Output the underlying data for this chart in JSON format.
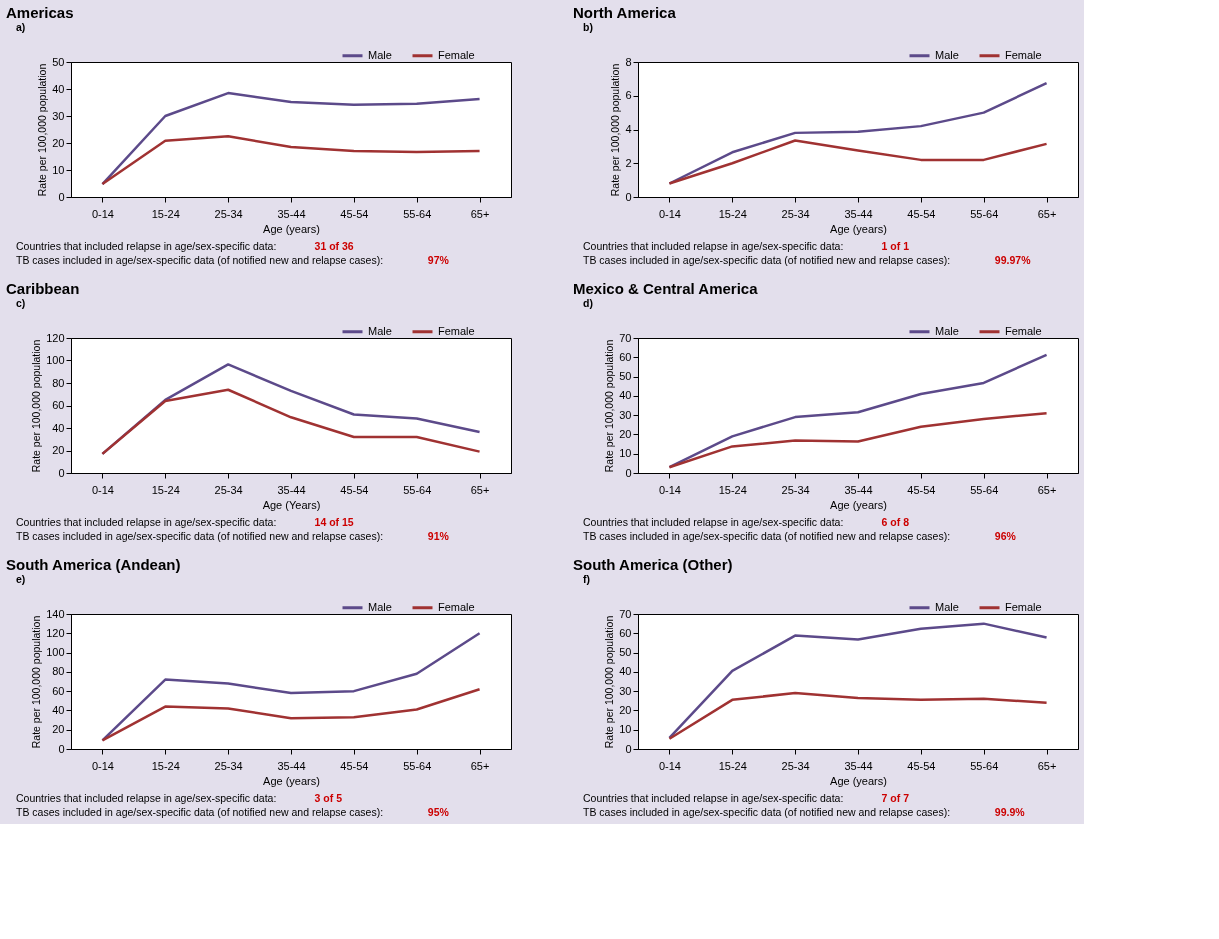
{
  "chart_data": [
    {
      "type": "line",
      "title": "Americas",
      "xlabel": "Age (years)",
      "ylabel": "Rate per 100,000 population",
      "categories": [
        "0-14",
        "15-24",
        "25-34",
        "35-44",
        "45-54",
        "55-64",
        "65+"
      ],
      "ylim": [
        0,
        50
      ],
      "yticks": [
        0,
        10,
        20,
        30,
        40,
        50
      ],
      "legend": "top right",
      "series": [
        {
          "name": "Male",
          "color": "#5c4a8a",
          "values": [
            4.8,
            30,
            38.5,
            35.2,
            34.2,
            34.5,
            36.3
          ]
        },
        {
          "name": "Female",
          "color": "#a03232",
          "values": [
            4.8,
            20.8,
            22.5,
            18.5,
            17,
            16.7,
            17
          ]
        }
      ],
      "annotations": [
        "a)",
        "Countries that included relapse in age/sex-specific data:",
        "31 of 36",
        "TB cases included in age/sex-specific data (of notified new and relapse cases):",
        "97%"
      ]
    },
    {
      "type": "line",
      "title": "North America",
      "xlabel": "Age (years)",
      "ylabel": "Rate per 100,000 population",
      "categories": [
        "0-14",
        "15-24",
        "25-34",
        "35-44",
        "45-54",
        "55-64",
        "65+"
      ],
      "ylim": [
        0,
        8
      ],
      "yticks": [
        0,
        2,
        4,
        6,
        8
      ],
      "legend": "top right",
      "series": [
        {
          "name": "Male",
          "color": "#5c4a8a",
          "values": [
            0.8,
            2.65,
            3.8,
            3.87,
            4.2,
            5.0,
            6.75
          ]
        },
        {
          "name": "Female",
          "color": "#a03232",
          "values": [
            0.8,
            2.0,
            3.35,
            2.75,
            2.2,
            2.2,
            3.15
          ]
        }
      ],
      "annotations": [
        "b)",
        "Countries that included relapse in age/sex-specific data:",
        "1 of 1",
        "TB cases included in age/sex-specific data (of notified new and relapse cases):",
        "99.97%"
      ]
    },
    {
      "type": "line",
      "title": "Caribbean",
      "xlabel": "Age (Years)",
      "ylabel": "Rate per 100,000 population",
      "categories": [
        "0-14",
        "15-24",
        "25-34",
        "35-44",
        "45-54",
        "55-64",
        "65+"
      ],
      "ylim": [
        0,
        120
      ],
      "yticks": [
        0,
        20,
        40,
        60,
        80,
        100,
        120
      ],
      "legend": "top right",
      "series": [
        {
          "name": "Male",
          "color": "#5c4a8a",
          "values": [
            17,
            65,
            96.5,
            73,
            52,
            48.5,
            36.5
          ]
        },
        {
          "name": "Female",
          "color": "#a03232",
          "values": [
            17,
            64,
            74,
            49.5,
            32,
            32,
            19
          ]
        }
      ],
      "annotations": [
        "c)",
        "Countries that included relapse in age/sex-specific data:",
        "14 of 15",
        "TB cases included in age/sex-specific data (of notified new and relapse cases):",
        "91%"
      ]
    },
    {
      "type": "line",
      "title": "Mexico & Central America",
      "xlabel": "Age (years)",
      "ylabel": "Rate per 100,000 population",
      "categories": [
        "0-14",
        "15-24",
        "25-34",
        "35-44",
        "45-54",
        "55-64",
        "65+"
      ],
      "ylim": [
        0,
        70
      ],
      "yticks": [
        0,
        10,
        20,
        30,
        40,
        50,
        60,
        70
      ],
      "legend": "top right",
      "series": [
        {
          "name": "Male",
          "color": "#5c4a8a",
          "values": [
            3,
            19,
            29,
            31.5,
            41,
            46.7,
            61.3
          ]
        },
        {
          "name": "Female",
          "color": "#a03232",
          "values": [
            3,
            13.8,
            16.8,
            16.3,
            24,
            28,
            31
          ]
        }
      ],
      "annotations": [
        "d)",
        "Countries that included relapse in age/sex-specific data:",
        "6 of 8",
        "TB cases included in age/sex-specific data (of notified new and relapse cases):",
        "96%"
      ]
    },
    {
      "type": "line",
      "title": "South America (Andean)",
      "xlabel": "Age (years)",
      "ylabel": "Rate per 100,000 population",
      "categories": [
        "0-14",
        "15-24",
        "25-34",
        "35-44",
        "45-54",
        "55-64",
        "65+"
      ],
      "ylim": [
        0,
        140
      ],
      "yticks": [
        0,
        20,
        40,
        60,
        80,
        100,
        120,
        140
      ],
      "legend": "top right",
      "series": [
        {
          "name": "Male",
          "color": "#5c4a8a",
          "values": [
            9,
            72,
            68,
            58,
            60,
            78,
            120
          ]
        },
        {
          "name": "Female",
          "color": "#a03232",
          "values": [
            9,
            44,
            42,
            32,
            33,
            41,
            62
          ]
        }
      ],
      "annotations": [
        "e)",
        "Countries that included relapse in age/sex-specific data:",
        "3 of 5",
        "TB cases included in age/sex-specific data (of notified new and relapse cases):",
        "95%"
      ]
    },
    {
      "type": "line",
      "title": "South America (Other)",
      "xlabel": "Age (years)",
      "ylabel": "Rate per 100,000 population",
      "categories": [
        "0-14",
        "15-24",
        "25-34",
        "35-44",
        "45-54",
        "55-64",
        "65+"
      ],
      "ylim": [
        0,
        70
      ],
      "yticks": [
        0,
        10,
        20,
        30,
        40,
        50,
        60,
        70
      ],
      "legend": "top right",
      "series": [
        {
          "name": "Male",
          "color": "#5c4a8a",
          "values": [
            5.8,
            40.5,
            58.8,
            56.8,
            62.3,
            65,
            57.8
          ]
        },
        {
          "name": "Female",
          "color": "#a03232",
          "values": [
            5.3,
            25.5,
            29,
            26.5,
            25.5,
            26,
            24
          ]
        }
      ],
      "annotations": [
        "f)",
        "Countries that included relapse in age/sex-specific data:",
        "7 of 7",
        "TB cases included in age/sex-specific data (of notified new and relapse cases):",
        "99.9%"
      ]
    }
  ]
}
